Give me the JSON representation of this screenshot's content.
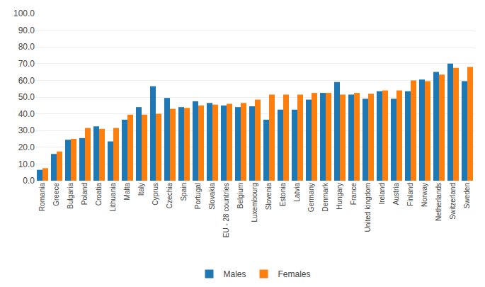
{
  "chart_data": {
    "type": "bar",
    "categories": [
      "Romania",
      "Greece",
      "Bulgaria",
      "Poland",
      "Croatia",
      "Lithuania",
      "Malta",
      "Italy",
      "Cyprus",
      "Czechia",
      "Spain",
      "Portugal",
      "Slovakia",
      "EU - 28 countries",
      "Belgium",
      "Luxembourg",
      "Slovenia",
      "Estonia",
      "Latvia",
      "Germany",
      "Denmark",
      "Hungary",
      "France",
      "United kingdom",
      "Ireland",
      "Austria",
      "Finland",
      "Norway",
      "Netherlands",
      "Switzerland",
      "Sweden"
    ],
    "series": [
      {
        "name": "Males",
        "values": [
          6.5,
          16.0,
          24.5,
          25.5,
          32.5,
          23.5,
          36.5,
          44.0,
          56.5,
          49.5,
          44.0,
          47.5,
          46.5,
          45.0,
          44.0,
          44.5,
          36.5,
          42.5,
          42.5,
          48.5,
          52.5,
          59.0,
          51.5,
          49.0,
          53.5,
          49.0,
          53.5,
          60.5,
          65.0,
          70.0,
          59.5
        ]
      },
      {
        "name": "Females",
        "values": [
          7.5,
          17.5,
          25.0,
          31.5,
          31.0,
          31.5,
          39.5,
          39.5,
          40.0,
          43.0,
          43.5,
          45.0,
          45.5,
          46.0,
          46.5,
          48.5,
          51.5,
          51.5,
          51.5,
          52.5,
          52.5,
          51.5,
          52.5,
          52.0,
          54.0,
          54.0,
          60.0,
          59.5,
          63.5,
          67.5,
          68.0
        ]
      }
    ],
    "ylim": [
      0,
      100
    ],
    "yticks": [
      {
        "value": 0,
        "label": "0.0"
      },
      {
        "value": 10,
        "label": "10.0"
      },
      {
        "value": 20,
        "label": "20.0"
      },
      {
        "value": 30,
        "label": "30.0"
      },
      {
        "value": 40,
        "label": "40.0"
      },
      {
        "value": 50,
        "label": "50.0"
      },
      {
        "value": 60,
        "label": "60.0"
      },
      {
        "value": 70,
        "label": "70.0"
      },
      {
        "value": 80,
        "label": "80.0"
      },
      {
        "value": 90,
        "label": "90.0"
      },
      {
        "value": 100,
        "label": "100.0"
      }
    ],
    "grid": true,
    "legend": "bottom"
  }
}
